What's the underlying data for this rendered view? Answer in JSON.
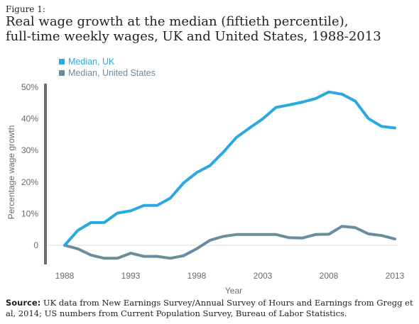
{
  "figure_label": "Figure 1:",
  "title_line1": "Real wage growth at the median (fiftieth percentile),",
  "title_line2": "full-time weekly wages, UK and United States, 1988-2013",
  "source_label": "Source:",
  "source_text": " UK data from New Earnings Survey/Annual Survey of Hours and Earnings from Gregg et al, 2014; US numbers from Current Population Survey, Bureau of Labor Statistics.",
  "chart_data": {
    "type": "line",
    "xlabel": "Year",
    "ylabel": "Percentage wage growth",
    "xlim": [
      1988,
      2013
    ],
    "ylim": [
      0,
      50
    ],
    "x_ticks": [
      "1988",
      "1993",
      "1998",
      "2003",
      "2008",
      "2013"
    ],
    "y_ticks": [
      "0",
      "10%",
      "20%",
      "30%",
      "40%",
      "50%"
    ],
    "legend_position": "top-left",
    "x": [
      1988,
      1989,
      1990,
      1991,
      1992,
      1993,
      1994,
      1995,
      1996,
      1997,
      1998,
      1999,
      2000,
      2001,
      2002,
      2003,
      2004,
      2005,
      2006,
      2007,
      2008,
      2009,
      2010,
      2011,
      2012,
      2013
    ],
    "series": [
      {
        "name": "Median, UK",
        "color": "#29a9e0",
        "values": [
          0,
          4.7,
          7.2,
          7.2,
          10.2,
          10.9,
          12.6,
          12.6,
          14.9,
          19.7,
          23,
          25.2,
          29.4,
          34.1,
          37.1,
          40,
          43.6,
          44.4,
          45.3,
          46.4,
          48.5,
          47.8,
          45.6,
          40.1,
          37.6,
          37.1
        ]
      },
      {
        "name": "Median, United States",
        "color": "#6b8b9e",
        "values": [
          0,
          -1.1,
          -3.1,
          -4.1,
          -4.1,
          -2.5,
          -3.5,
          -3.5,
          -4.1,
          -3.3,
          -1.1,
          1.6,
          2.8,
          3.4,
          3.4,
          3.4,
          3.4,
          2.4,
          2.3,
          3.4,
          3.5,
          6,
          5.6,
          3.6,
          3.1,
          2
        ]
      }
    ]
  }
}
